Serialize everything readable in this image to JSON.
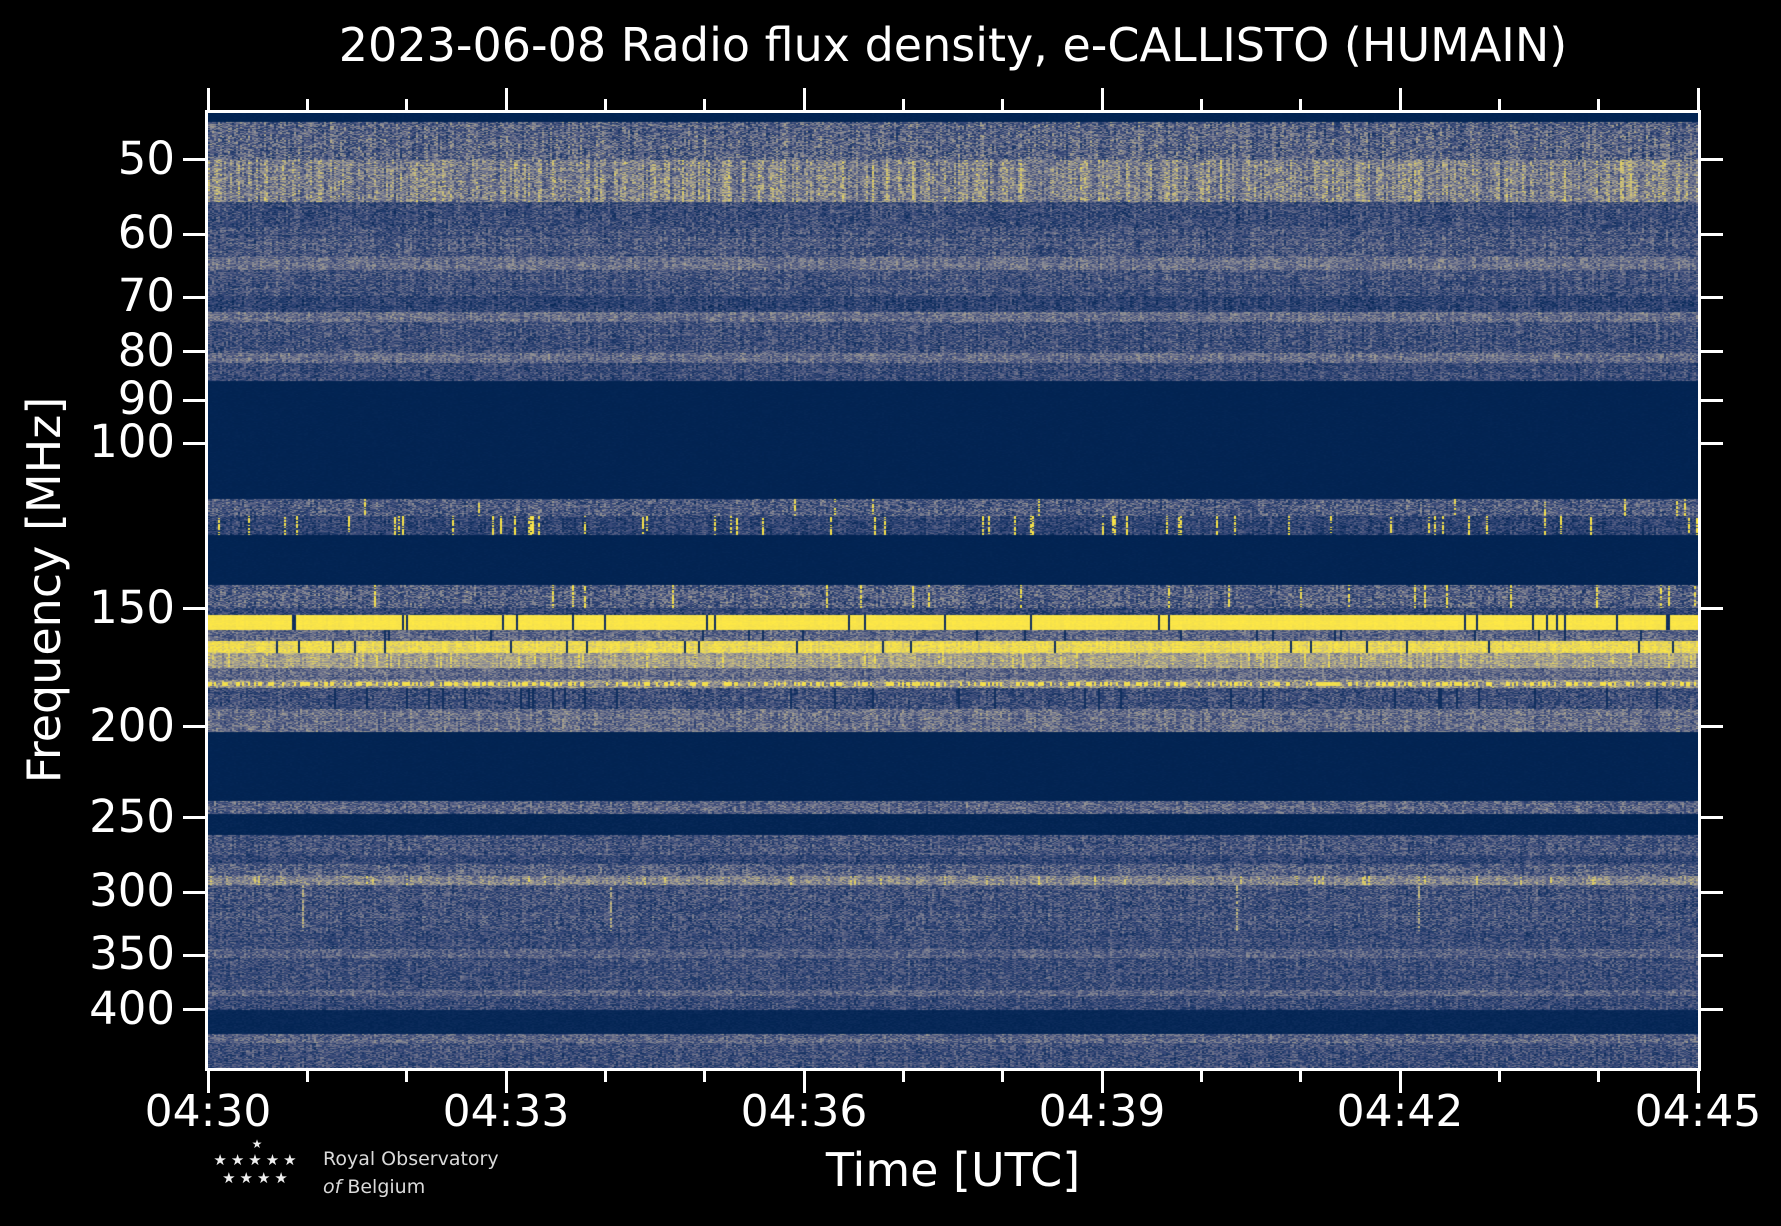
{
  "chart_data": {
    "type": "heatmap",
    "subtype": "radio-spectrogram",
    "title": "2023-06-08 Radio flux density, e-CALLISTO (HUMAIN)",
    "date": "2023-06-08",
    "instrument_network": "e-CALLISTO",
    "station": "HUMAIN",
    "xlabel": "Time [UTC]",
    "ylabel": "Frequency [MHz]",
    "x_axis": {
      "start_minutes": 270,
      "end_minutes": 285,
      "major_ticks": [
        {
          "minutes": 270,
          "label": "04:30"
        },
        {
          "minutes": 273,
          "label": "04:33"
        },
        {
          "minutes": 276,
          "label": "04:36"
        },
        {
          "minutes": 279,
          "label": "04:39"
        },
        {
          "minutes": 282,
          "label": "04:42"
        },
        {
          "minutes": 285,
          "label": "04:45"
        }
      ],
      "minor_step_minutes": 1
    },
    "y_axis": {
      "scale": "log",
      "min_mhz": 44.6,
      "max_mhz": 461,
      "inverted": true,
      "tick_values_mhz": [
        50,
        60,
        70,
        80,
        90,
        100,
        150,
        200,
        250,
        300,
        350,
        400
      ]
    },
    "colormap": {
      "name": "cividis-like",
      "stops": [
        [
          0.0,
          "#001f4c"
        ],
        [
          0.08,
          "#032554"
        ],
        [
          0.2,
          "#1b3768"
        ],
        [
          0.33,
          "#3a4a79"
        ],
        [
          0.46,
          "#646a88"
        ],
        [
          0.57,
          "#888a95"
        ],
        [
          0.67,
          "#a9a28d"
        ],
        [
          0.77,
          "#ccc07b"
        ],
        [
          0.87,
          "#ecda52"
        ],
        [
          1.0,
          "#ffe945"
        ]
      ]
    },
    "bands": [
      {
        "name": "top-quiet-strip",
        "f": [
          44.6,
          45.6
        ],
        "base": 0.07,
        "noise": 0.02,
        "row": 0.0,
        "col": 0.0
      },
      {
        "name": "hf-noise-upper",
        "f": [
          45.6,
          50.0
        ],
        "base": 0.42,
        "noise": 0.22,
        "row": 0.06,
        "col": 0.18
      },
      {
        "name": "hf-noise-bright",
        "f": [
          50.0,
          55.5
        ],
        "base": 0.54,
        "noise": 0.2,
        "row": 0.05,
        "col": 0.2,
        "blob_p": 0.02,
        "blob_v": 0.78
      },
      {
        "name": "band-56-59",
        "f": [
          55.5,
          59.0
        ],
        "base": 0.33,
        "noise": 0.17,
        "row": 0.05,
        "col": 0.15
      },
      {
        "name": "band-59-63",
        "f": [
          59.0,
          63.5
        ],
        "base": 0.37,
        "noise": 0.18,
        "row": 0.1,
        "col": 0.15
      },
      {
        "name": "gray-line-64",
        "f": [
          63.5,
          65.5
        ],
        "base": 0.48,
        "noise": 0.15,
        "row": 0.04,
        "col": 0.12
      },
      {
        "name": "band-66-70",
        "f": [
          65.5,
          69.8
        ],
        "base": 0.35,
        "noise": 0.17,
        "row": 0.08,
        "col": 0.15
      },
      {
        "name": "dark-70-72",
        "f": [
          69.8,
          72.5
        ],
        "base": 0.28,
        "noise": 0.15,
        "row": 0.06,
        "col": 0.18
      },
      {
        "name": "gray-line-73",
        "f": [
          72.5,
          74.3
        ],
        "base": 0.47,
        "noise": 0.15,
        "row": 0.04,
        "col": 0.12
      },
      {
        "name": "band-74-80",
        "f": [
          74.3,
          80.3
        ],
        "base": 0.34,
        "noise": 0.17,
        "row": 0.08,
        "col": 0.15
      },
      {
        "name": "gray-line-81",
        "f": [
          80.3,
          82.2
        ],
        "base": 0.46,
        "noise": 0.15,
        "row": 0.04,
        "col": 0.12
      },
      {
        "name": "band-82-86",
        "f": [
          82.2,
          85.8
        ],
        "base": 0.32,
        "noise": 0.16,
        "row": 0.06,
        "col": 0.15
      },
      {
        "name": "quiet-86-114",
        "f": [
          85.8,
          114.5
        ],
        "base": 0.07,
        "noise": 0.02,
        "row": 0.02,
        "col": 0.0
      },
      {
        "name": "band-115-119",
        "f": [
          114.5,
          119.4
        ],
        "base": 0.38,
        "noise": 0.2,
        "row": 0.06,
        "col": 0.15,
        "blob_p": 0.015,
        "blob_v": 0.9
      },
      {
        "name": "airband-blobs",
        "f": [
          119.4,
          125.1
        ],
        "base": 0.28,
        "noise": 0.16,
        "row": 0.05,
        "col": 0.15,
        "blob_p": 0.055,
        "blob_v": 0.95
      },
      {
        "name": "quiet-125-141",
        "f": [
          125.1,
          141.5
        ],
        "base": 0.07,
        "noise": 0.02,
        "row": 0.02,
        "col": 0.0
      },
      {
        "name": "band-142-150-dots",
        "f": [
          141.5,
          149.5
        ],
        "base": 0.4,
        "noise": 0.21,
        "row": 0.06,
        "col": 0.15,
        "blob_p": 0.03,
        "blob_v": 0.92
      },
      {
        "name": "dim-150-152",
        "f": [
          149.5,
          152.4
        ],
        "base": 0.29,
        "noise": 0.16,
        "row": 0.05,
        "col": 0.12
      },
      {
        "name": "bright-yellow-155",
        "f": [
          152.4,
          157.8
        ],
        "base": 0.96,
        "noise": 0.035,
        "row": 0.02,
        "col": 0.02,
        "drop_p": 0.02
      },
      {
        "name": "gray-158-162",
        "f": [
          157.8,
          162.3
        ],
        "base": 0.44,
        "noise": 0.16,
        "row": 0.06,
        "col": 0.12,
        "drop_p": 0.02
      },
      {
        "name": "yellow-163-167",
        "f": [
          162.3,
          167.2
        ],
        "base": 0.88,
        "noise": 0.1,
        "row": 0.03,
        "col": 0.06,
        "drop_p": 0.03
      },
      {
        "name": "cream-167-173",
        "f": [
          167.2,
          173.5
        ],
        "base": 0.66,
        "noise": 0.13,
        "row": 0.05,
        "col": 0.1,
        "blob_p": 0.04,
        "blob_v": 0.85
      },
      {
        "name": "gray-174-178",
        "f": [
          173.5,
          178.3
        ],
        "base": 0.45,
        "noise": 0.15,
        "row": 0.05,
        "col": 0.1
      },
      {
        "name": "yellow-dotted-180",
        "f": [
          178.3,
          182.2
        ],
        "base": 0.6,
        "noise": 0.18,
        "row": 0.03,
        "col": 0.05,
        "dots_p": 0.45,
        "dots_v": 0.92
      },
      {
        "name": "band-182-191",
        "f": [
          182.2,
          191.5
        ],
        "base": 0.34,
        "noise": 0.17,
        "row": 0.07,
        "col": 0.12,
        "drop_p": 0.04
      },
      {
        "name": "gray-192-203",
        "f": [
          191.5,
          202.8
        ],
        "base": 0.47,
        "noise": 0.17,
        "row": 0.06,
        "col": 0.12
      },
      {
        "name": "quiet-203-240",
        "f": [
          202.8,
          240.0
        ],
        "base": 0.07,
        "noise": 0.02,
        "row": 0.02,
        "col": 0.0
      },
      {
        "name": "gray-line-244",
        "f": [
          240.0,
          247.5
        ],
        "base": 0.42,
        "noise": 0.18,
        "row": 0.05,
        "col": 0.12
      },
      {
        "name": "quiet-248-261",
        "f": [
          247.5,
          261.0
        ],
        "base": 0.08,
        "noise": 0.03,
        "row": 0.02,
        "col": 0.0
      },
      {
        "name": "band-261-274",
        "f": [
          261.0,
          274.0
        ],
        "base": 0.36,
        "noise": 0.18,
        "row": 0.08,
        "col": 0.12
      },
      {
        "name": "dim-274-280",
        "f": [
          274.0,
          280.0
        ],
        "base": 0.29,
        "noise": 0.15,
        "row": 0.06,
        "col": 0.12
      },
      {
        "name": "band-280-288",
        "f": [
          280.0,
          288.0
        ],
        "base": 0.4,
        "noise": 0.19,
        "row": 0.07,
        "col": 0.12
      },
      {
        "name": "cream-line-300",
        "f": [
          288.0,
          294.5
        ],
        "base": 0.56,
        "noise": 0.16,
        "row": 0.04,
        "col": 0.1,
        "blob_p": 0.05,
        "blob_v": 0.8
      },
      {
        "name": "band-295-330",
        "f": [
          294.5,
          330.0
        ],
        "base": 0.35,
        "noise": 0.18,
        "row": 0.09,
        "col": 0.12,
        "blob_p": 0.008,
        "blob_v": 0.72
      },
      {
        "name": "band-330-345",
        "f": [
          330.0,
          345.0
        ],
        "base": 0.33,
        "noise": 0.16,
        "row": 0.08,
        "col": 0.12
      },
      {
        "name": "gray-line-348",
        "f": [
          345.0,
          352.0
        ],
        "base": 0.42,
        "noise": 0.15,
        "row": 0.05,
        "col": 0.1
      },
      {
        "name": "band-352-381",
        "f": [
          352.0,
          381.0
        ],
        "base": 0.33,
        "noise": 0.16,
        "row": 0.08,
        "col": 0.12
      },
      {
        "name": "gray-line-384",
        "f": [
          381.0,
          387.0
        ],
        "base": 0.44,
        "noise": 0.15,
        "row": 0.05,
        "col": 0.1
      },
      {
        "name": "band-387-400",
        "f": [
          387.0,
          400.0
        ],
        "base": 0.32,
        "noise": 0.16,
        "row": 0.07,
        "col": 0.12
      },
      {
        "name": "quiet-400-424",
        "f": [
          400.0,
          424.0
        ],
        "base": 0.1,
        "noise": 0.03,
        "row": 0.02,
        "col": 0.0
      },
      {
        "name": "gray-line-429",
        "f": [
          424.0,
          434.0
        ],
        "base": 0.43,
        "noise": 0.17,
        "row": 0.05,
        "col": 0.1
      },
      {
        "name": "band-434-461",
        "f": [
          434.0,
          461.0
        ],
        "base": 0.34,
        "noise": 0.17,
        "row": 0.08,
        "col": 0.12
      }
    ]
  },
  "logo": {
    "name": "royal-observatory-of-belgium-logo",
    "star_rows": [
      1,
      5,
      4
    ],
    "star_glyph": "★",
    "line1": "Royal Observatory",
    "line2_italic": "of",
    "line2_rest": "Belgium"
  },
  "colors": {
    "page_background": "#000000",
    "axis_and_text": "#ffffff",
    "quiet_navy": "#032554",
    "bright_yellow": "#ffe945",
    "logo_text": "#dadada"
  }
}
